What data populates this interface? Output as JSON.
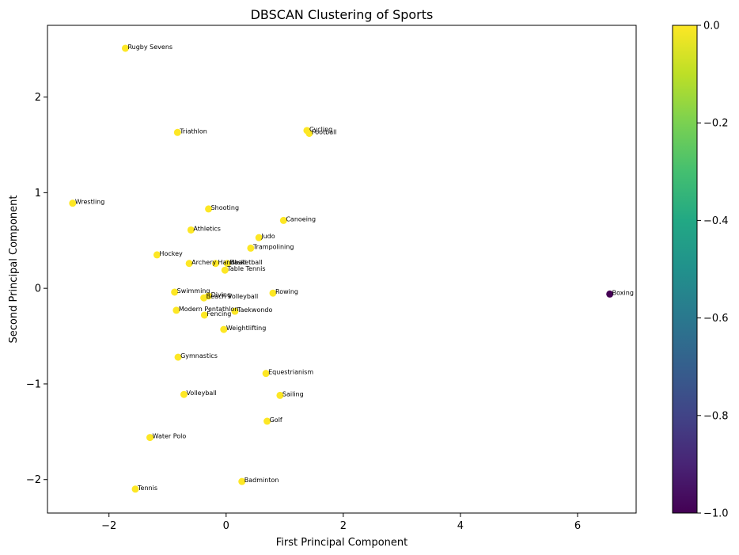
{
  "chart_data": {
    "type": "scatter",
    "title": "DBSCAN Clustering of Sports",
    "xlabel": "First Principal Component",
    "ylabel": "Second Principal Component",
    "xlim": [
      -3.05,
      7.0
    ],
    "ylim": [
      -2.35,
      2.75
    ],
    "xticks": [
      -2,
      0,
      2,
      4,
      6
    ],
    "yticks": [
      -2,
      -1,
      0,
      1,
      2
    ],
    "grid": false,
    "colorbar": {
      "colormap": "viridis",
      "range": [
        -1.0,
        0.0
      ],
      "ticks": [
        0.0,
        -0.2,
        -0.4,
        -0.6,
        -0.8,
        -1.0
      ],
      "tick_labels": [
        "0.0",
        "−0.2",
        "−0.4",
        "−0.6",
        "−0.8",
        "−1.0"
      ],
      "stops": [
        "#440154",
        "#482475",
        "#414487",
        "#355f8d",
        "#2a788e",
        "#21918c",
        "#22a884",
        "#44bf70",
        "#7ad151",
        "#bddf26",
        "#fde725"
      ]
    },
    "points": [
      {
        "label": "Rugby Sevens",
        "x": -1.72,
        "y": 2.51,
        "cluster": 0
      },
      {
        "label": "Triathlon",
        "x": -0.83,
        "y": 1.63,
        "cluster": 0
      },
      {
        "label": "Cycling",
        "x": 1.38,
        "y": 1.65,
        "cluster": 0
      },
      {
        "label": "Football",
        "x": 1.42,
        "y": 1.62,
        "cluster": 0
      },
      {
        "label": "Wrestling",
        "x": -2.62,
        "y": 0.89,
        "cluster": 0
      },
      {
        "label": "Shooting",
        "x": -0.3,
        "y": 0.83,
        "cluster": 0
      },
      {
        "label": "Canoeing",
        "x": 0.98,
        "y": 0.71,
        "cluster": 0
      },
      {
        "label": "Athletics",
        "x": -0.6,
        "y": 0.61,
        "cluster": 0
      },
      {
        "label": "Judo",
        "x": 0.56,
        "y": 0.53,
        "cluster": 0
      },
      {
        "label": "Trampolining",
        "x": 0.42,
        "y": 0.42,
        "cluster": 0
      },
      {
        "label": "Hockey",
        "x": -1.18,
        "y": 0.35,
        "cluster": 0
      },
      {
        "label": "Archery",
        "x": -0.63,
        "y": 0.26,
        "cluster": 0
      },
      {
        "label": "Handball",
        "x": -0.18,
        "y": 0.26,
        "cluster": 0
      },
      {
        "label": "Basketball",
        "x": 0.02,
        "y": 0.26,
        "cluster": 0
      },
      {
        "label": "Table Tennis",
        "x": -0.02,
        "y": 0.19,
        "cluster": 0
      },
      {
        "label": "Swimming",
        "x": -0.88,
        "y": -0.04,
        "cluster": 0
      },
      {
        "label": "Diving",
        "x": -0.3,
        "y": -0.08,
        "cluster": 0
      },
      {
        "label": "Beach Volleyball",
        "x": -0.38,
        "y": -0.1,
        "cluster": 0
      },
      {
        "label": "Rowing",
        "x": 0.8,
        "y": -0.05,
        "cluster": 0
      },
      {
        "label": "Boxing",
        "x": 6.55,
        "y": -0.06,
        "cluster": -1
      },
      {
        "label": "Modern Pentathlon",
        "x": -0.85,
        "y": -0.23,
        "cluster": 0
      },
      {
        "label": "Taekwondo",
        "x": 0.15,
        "y": -0.24,
        "cluster": 0
      },
      {
        "label": "Fencing",
        "x": -0.37,
        "y": -0.28,
        "cluster": 0
      },
      {
        "label": "Weightlifting",
        "x": -0.04,
        "y": -0.43,
        "cluster": 0
      },
      {
        "label": "Gymnastics",
        "x": -0.82,
        "y": -0.72,
        "cluster": 0
      },
      {
        "label": "Equestrianism",
        "x": 0.68,
        "y": -0.89,
        "cluster": 0
      },
      {
        "label": "Volleyball",
        "x": -0.72,
        "y": -1.11,
        "cluster": 0
      },
      {
        "label": "Sailing",
        "x": 0.92,
        "y": -1.12,
        "cluster": 0
      },
      {
        "label": "Golf",
        "x": 0.7,
        "y": -1.39,
        "cluster": 0
      },
      {
        "label": "Water Polo",
        "x": -1.3,
        "y": -1.56,
        "cluster": 0
      },
      {
        "label": "Badminton",
        "x": 0.27,
        "y": -2.02,
        "cluster": 0
      },
      {
        "label": "Tennis",
        "x": -1.55,
        "y": -2.1,
        "cluster": 0
      }
    ]
  }
}
